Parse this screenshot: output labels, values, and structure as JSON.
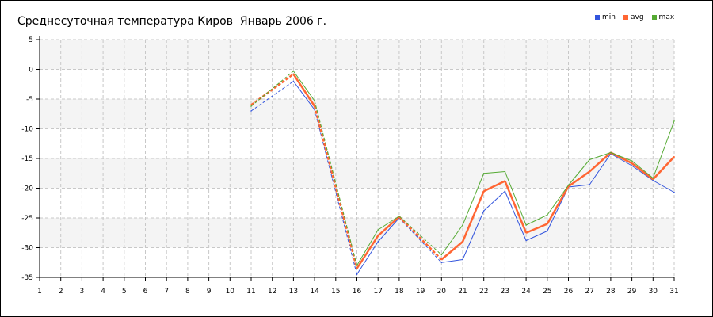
{
  "chart_data": {
    "type": "line",
    "title": "Среднесуточная температура Киров  Январь 2006 г.",
    "xlabel": "",
    "ylabel": "",
    "x": [
      1,
      2,
      3,
      4,
      5,
      6,
      7,
      8,
      9,
      10,
      11,
      12,
      13,
      14,
      15,
      16,
      17,
      18,
      19,
      20,
      21,
      22,
      23,
      24,
      25,
      26,
      27,
      28,
      29,
      30,
      31
    ],
    "xlim": [
      1,
      31
    ],
    "ylim": [
      -35,
      5
    ],
    "yticks": [
      5,
      0,
      -5,
      -10,
      -15,
      -20,
      -25,
      -30,
      -35
    ],
    "grid": true,
    "legend_position": "top-right",
    "series": [
      {
        "name": "min",
        "color": "#3355dd",
        "values": [
          null,
          null,
          null,
          null,
          null,
          null,
          null,
          null,
          null,
          null,
          -7.0,
          null,
          -2.0,
          -6.8,
          null,
          -34.5,
          -29.0,
          -25.0,
          null,
          -32.5,
          -32.0,
          -23.8,
          -20.5,
          -28.8,
          -27.2,
          -19.8,
          -19.4,
          -14.2,
          -16.2,
          -18.7,
          -20.7
        ]
      },
      {
        "name": "avg",
        "color": "#ff6633",
        "values": [
          null,
          null,
          null,
          null,
          null,
          null,
          null,
          null,
          null,
          null,
          -6.0,
          null,
          -0.8,
          -6.2,
          null,
          -33.5,
          -28.0,
          -24.8,
          null,
          -32.0,
          -29.0,
          -20.5,
          -18.8,
          -27.5,
          -26.0,
          -19.7,
          -17.2,
          -14.0,
          -15.8,
          -18.5,
          -14.7
        ]
      },
      {
        "name": "max",
        "color": "#55aa33",
        "values": [
          null,
          null,
          null,
          null,
          null,
          null,
          null,
          null,
          null,
          null,
          -6.2,
          null,
          -0.3,
          -5.3,
          null,
          -33.0,
          -27.0,
          -24.7,
          null,
          -31.2,
          -26.2,
          -17.5,
          -17.2,
          -26.2,
          -24.5,
          -19.5,
          -15.2,
          -14.0,
          -15.4,
          -18.3,
          -8.7
        ]
      }
    ]
  }
}
